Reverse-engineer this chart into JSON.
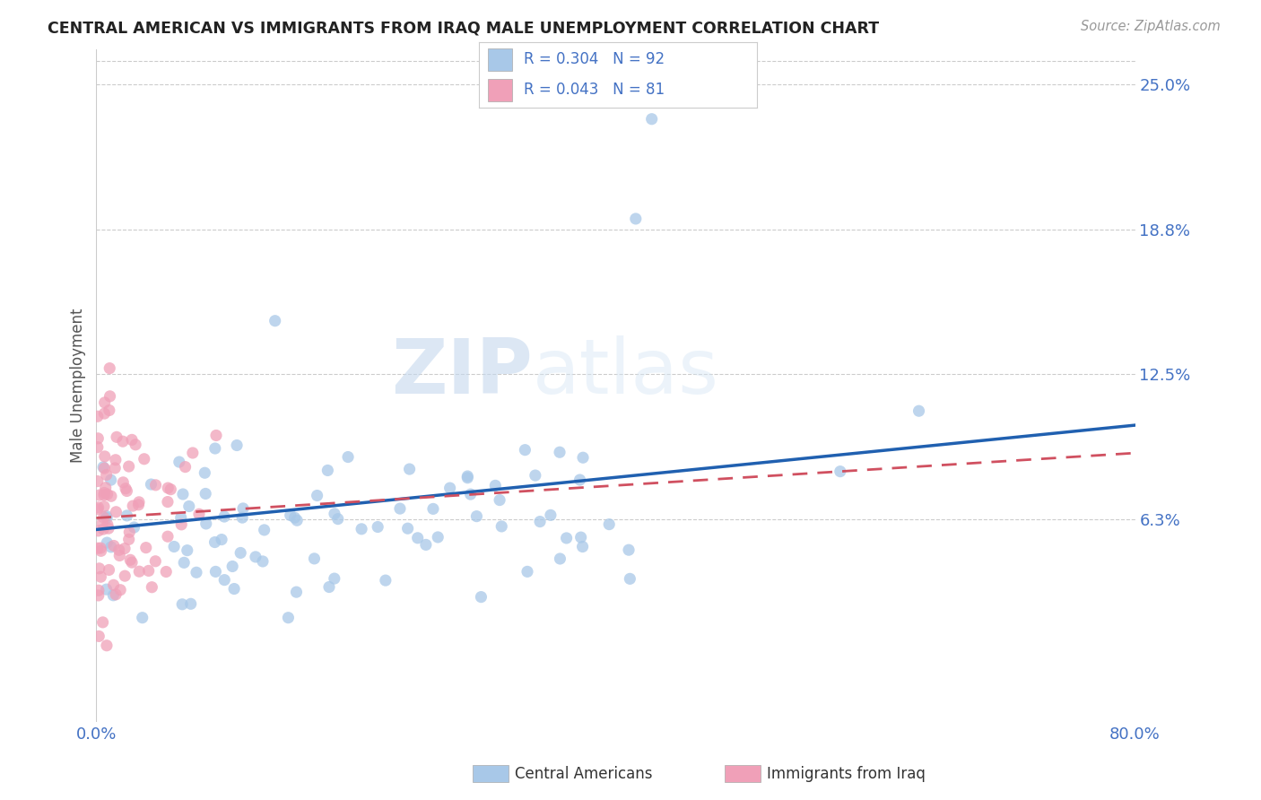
{
  "title": "CENTRAL AMERICAN VS IMMIGRANTS FROM IRAQ MALE UNEMPLOYMENT CORRELATION CHART",
  "source": "Source: ZipAtlas.com",
  "ylabel": "Male Unemployment",
  "r_blue": 0.304,
  "n_blue": 92,
  "r_pink": 0.043,
  "n_pink": 81,
  "color_blue": "#a8c8e8",
  "color_pink": "#f0a0b8",
  "color_blue_line": "#2060b0",
  "color_pink_line": "#d05060",
  "legend_label_blue": "Central Americans",
  "legend_label_pink": "Immigrants from Iraq",
  "watermark_zip": "ZIP",
  "watermark_atlas": "atlas",
  "background_color": "#ffffff",
  "ytick_vals": [
    0.0625,
    0.125,
    0.1875,
    0.25
  ],
  "ytick_labels": [
    "6.3%",
    "12.5%",
    "18.8%",
    "25.0%"
  ],
  "xmin": 0.0,
  "xmax": 0.8,
  "ymin": -0.025,
  "ymax": 0.265,
  "blue_line_y0": 0.058,
  "blue_line_y1": 0.103,
  "pink_line_y0": 0.063,
  "pink_line_y1": 0.091
}
